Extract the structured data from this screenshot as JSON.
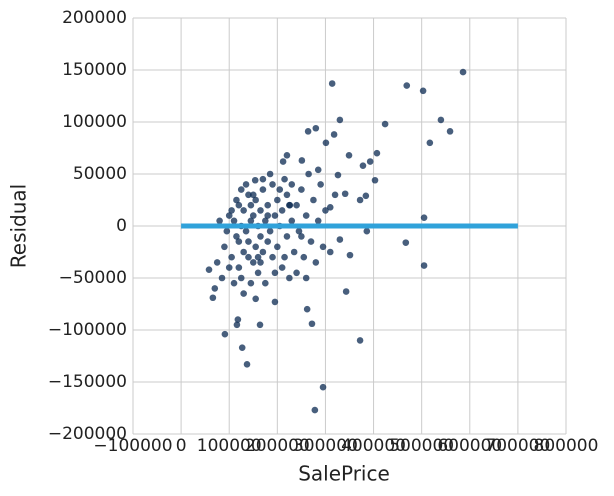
{
  "chart_data": {
    "type": "scatter",
    "x_label": "SalePrice",
    "y_label": "Residual",
    "xlim": [
      -100000,
      800000
    ],
    "ylim": [
      -200000,
      200000
    ],
    "xticks": [
      {
        "value": -100000,
        "label": "−100000"
      },
      0,
      100000,
      200000,
      300000,
      400000,
      500000,
      600000,
      700000,
      800000
    ],
    "yticks": [
      {
        "value": -200000,
        "label": "−200000"
      },
      {
        "value": -150000,
        "label": "−150000"
      },
      {
        "value": -100000,
        "label": "−100000"
      },
      {
        "value": -50000,
        "label": "−50000"
      },
      0,
      50000,
      100000,
      150000,
      200000
    ],
    "grid": true,
    "series": [
      {
        "color": "#0b2a52",
        "x": [
          586000,
          469000,
          314000,
          503000,
          540000,
          559000,
          424000,
          330000,
          517000,
          318000,
          280000,
          264000,
          301000,
          407000,
          349000,
          393000,
          378000,
          505000,
          467000,
          505000,
          386000,
          343000,
          372000,
          295000,
          278000,
          272000,
          262000,
          164000,
          137000,
          127000,
          91000,
          116000,
          118000,
          195000,
          58000,
          66000,
          351000,
          330000,
          226000,
          251000,
          220000,
          212000,
          154000,
          341000,
          384000,
          372000,
          310000,
          403000,
          326000,
          285000,
          90000,
          100000,
          105000,
          110000,
          115000,
          120000,
          120000,
          125000,
          130000,
          130000,
          135000,
          140000,
          140000,
          145000,
          150000,
          150000,
          155000,
          155000,
          160000,
          160000,
          165000,
          165000,
          170000,
          170000,
          175000,
          180000,
          180000,
          185000,
          190000,
          190000,
          195000,
          200000,
          200000,
          205000,
          210000,
          210000,
          215000,
          220000,
          220000,
          225000,
          230000,
          230000,
          235000,
          240000,
          245000,
          250000,
          255000,
          260000,
          265000,
          270000,
          275000,
          280000,
          285000,
          290000,
          295000,
          300000,
          310000,
          320000,
          115000,
          125000,
          135000,
          145000,
          175000,
          185000,
          75000,
          80000,
          70000,
          85000,
          95000,
          100000,
          110000,
          125000,
          140000,
          150000,
          165000,
          170000,
          195000,
          205000,
          215000,
          225000,
          240000,
          250000,
          260000,
          130000,
          155000,
          105000,
          120000,
          145000,
          160000,
          180000
        ],
        "values": [
          148000,
          135000,
          137000,
          130000,
          102000,
          91000,
          98000,
          102000,
          80000,
          88000,
          94000,
          91000,
          80000,
          70000,
          68000,
          62000,
          58000,
          8000,
          -16000,
          -38000,
          -5000,
          -63000,
          -110000,
          -155000,
          -177000,
          -94000,
          -80000,
          -95000,
          -133000,
          -117000,
          -104000,
          -95000,
          -90000,
          -73000,
          -42000,
          -69000,
          -28000,
          -13000,
          20000,
          63000,
          68000,
          62000,
          44000,
          31000,
          29000,
          25000,
          18000,
          44000,
          49000,
          54000,
          -20000,
          10000,
          -30000,
          5000,
          -10000,
          20000,
          -40000,
          0,
          15000,
          -25000,
          -5000,
          30000,
          -15000,
          5000,
          -35000,
          10000,
          -20000,
          25000,
          0,
          -45000,
          15000,
          -10000,
          35000,
          -25000,
          5000,
          -15000,
          20000,
          -5000,
          40000,
          -30000,
          10000,
          -20000,
          25000,
          0,
          -40000,
          15000,
          45000,
          -10000,
          30000,
          -50000,
          5000,
          40000,
          -25000,
          20000,
          -5000,
          35000,
          -30000,
          10000,
          50000,
          -15000,
          25000,
          -35000,
          5000,
          40000,
          -20000,
          15000,
          -25000,
          30000,
          25000,
          -50000,
          40000,
          -55000,
          -55000,
          50000,
          -35000,
          5000,
          -60000,
          -50000,
          -5000,
          -40000,
          -55000,
          35000,
          -30000,
          30000,
          -35000,
          45000,
          -45000,
          35000,
          -30000,
          20000,
          -45000,
          -10000,
          -50000,
          -65000,
          -70000,
          15000,
          -15000,
          20000,
          -30000,
          10000
        ]
      }
    ],
    "reference_line": {
      "x": [
        0,
        700000
      ],
      "y": [
        0,
        0
      ],
      "color": "#30a2da"
    }
  }
}
